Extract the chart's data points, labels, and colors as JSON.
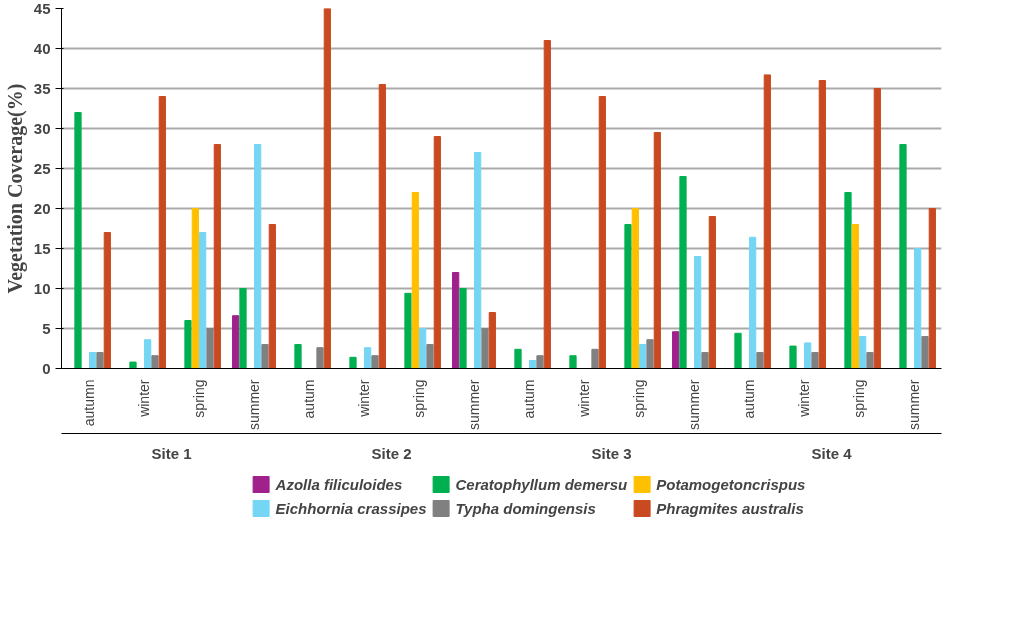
{
  "chart_data": {
    "type": "bar",
    "ylabel": "Vegetation Coverage(%)",
    "categories": [
      "autumn",
      "winter",
      "spring",
      "summer",
      "autum",
      "winter",
      "spring",
      "summer",
      "autum",
      "winter",
      "spring",
      "summer",
      "autum",
      "winter",
      "spring",
      "summer"
    ],
    "annotations": [
      "Site 1",
      "Site 2",
      "Site 3",
      "Site 4"
    ],
    "series": [
      {
        "name": "Azolla filiculoides",
        "color": "#a0208c",
        "values": [
          0,
          0,
          0,
          6.6,
          0,
          0,
          0,
          12,
          0,
          0,
          0,
          4.6,
          0,
          0,
          0,
          0
        ]
      },
      {
        "name": "Ceratophyllum demersu",
        "color": "#00b050",
        "values": [
          32,
          0.8,
          6,
          10,
          3,
          1.4,
          9.4,
          10,
          2.4,
          1.6,
          18,
          24,
          4.4,
          2.8,
          22,
          28
        ]
      },
      {
        "name": "Potamogetoncrispus",
        "color": "#ffc000",
        "values": [
          0,
          0,
          20,
          0,
          0,
          0,
          22,
          0,
          0,
          0,
          20,
          0,
          0,
          0,
          18,
          0
        ]
      },
      {
        "name": "Eichhornia crassipes",
        "color": "#75d5f5",
        "values": [
          2,
          3.6,
          17,
          28,
          0,
          2.6,
          5,
          27,
          1,
          0,
          3,
          14,
          16.4,
          3.2,
          4,
          15
        ]
      },
      {
        "name": "Typha domingensis",
        "color": "#808080",
        "values": [
          2,
          1.6,
          5,
          3,
          2.6,
          1.6,
          3,
          5,
          1.6,
          2.4,
          3.6,
          2,
          2,
          2,
          2,
          4
        ]
      },
      {
        "name": "Phragmites australis",
        "color": "#c94a20",
        "values": [
          17,
          34,
          28,
          18,
          45,
          35.5,
          29,
          7,
          41,
          34,
          29.5,
          19,
          36.7,
          36,
          35,
          20
        ]
      }
    ],
    "ylim": [
      0,
      45
    ],
    "yticks": [
      0,
      5,
      10,
      15,
      20,
      25,
      30,
      35,
      40,
      45
    ],
    "grid": "y",
    "legend": "bottom"
  }
}
